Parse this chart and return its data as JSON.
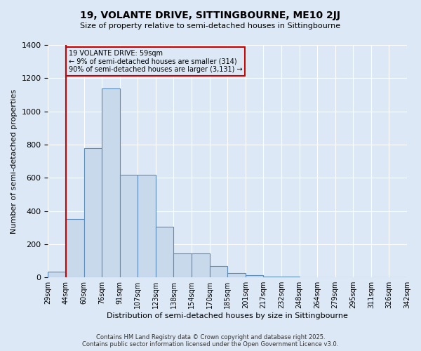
{
  "title": "19, VOLANTE DRIVE, SITTINGBOURNE, ME10 2JJ",
  "subtitle": "Size of property relative to semi-detached houses in Sittingbourne",
  "xlabel": "Distribution of semi-detached houses by size in Sittingbourne",
  "ylabel": "Number of semi-detached properties",
  "bar_values": [
    35,
    350,
    780,
    1140,
    620,
    620,
    305,
    145,
    145,
    70,
    25,
    15,
    5,
    5,
    2,
    2,
    1,
    1,
    0,
    0
  ],
  "bin_labels": [
    "29sqm",
    "44sqm",
    "60sqm",
    "76sqm",
    "91sqm",
    "107sqm",
    "123sqm",
    "138sqm",
    "154sqm",
    "170sqm",
    "185sqm",
    "201sqm",
    "217sqm",
    "232sqm",
    "248sqm",
    "264sqm",
    "279sqm",
    "295sqm",
    "311sqm",
    "326sqm",
    "342sqm"
  ],
  "bar_color": "#c9d9ec",
  "bar_edge_color": "#5b8db8",
  "red_line_x": 1.0,
  "annotation_title": "19 VOLANTE DRIVE: 59sqm",
  "annotation_line1": "← 9% of semi-detached houses are smaller (314)",
  "annotation_line2": "90% of semi-detached houses are larger (3,131) →",
  "annotation_box_color": "#cc0000",
  "ylim": [
    0,
    1400
  ],
  "yticks": [
    0,
    200,
    400,
    600,
    800,
    1000,
    1200,
    1400
  ],
  "background_color": "#dce8f5",
  "grid_color": "#ffffff",
  "footer_line1": "Contains HM Land Registry data © Crown copyright and database right 2025.",
  "footer_line2": "Contains public sector information licensed under the Open Government Licence v3.0."
}
